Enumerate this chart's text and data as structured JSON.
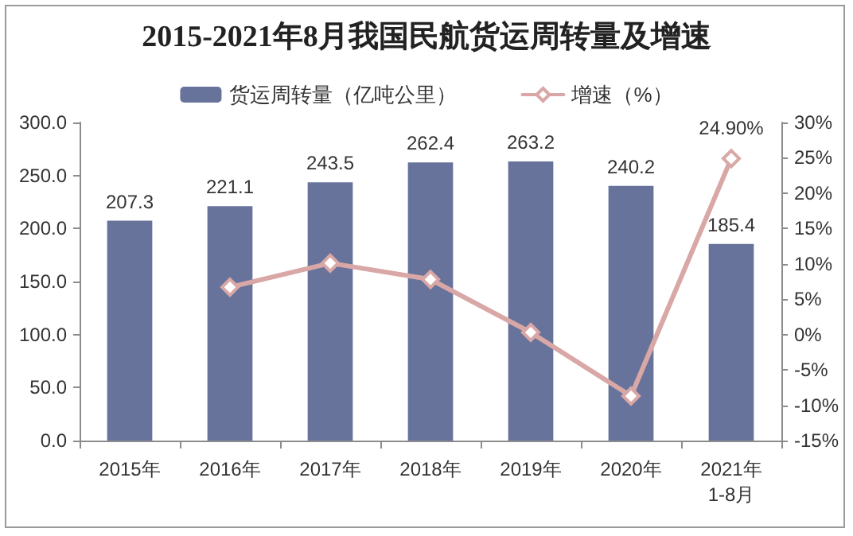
{
  "chart_data": {
    "type": "bar",
    "title": "2015-2021年8月我国民航货运周转量及增速",
    "categories": [
      "2015年",
      "2016年",
      "2017年",
      "2018年",
      "2019年",
      "2020年",
      "2021年\n1-8月"
    ],
    "series": [
      {
        "name": "货运周转量（亿吨公里）",
        "color": "#67739b",
        "values": [
          207.3,
          221.1,
          243.5,
          262.4,
          263.2,
          240.2,
          185.4
        ],
        "value_labels": [
          "207.3",
          "221.1",
          "243.5",
          "262.4",
          "263.2",
          "240.2",
          "185.4"
        ]
      },
      {
        "type": "line",
        "name": "增速（%）",
        "color": "#d8a7a6",
        "axis": "y2",
        "marker": "diamond",
        "values": [
          null,
          6.7,
          10.1,
          7.8,
          0.3,
          -8.7,
          24.9
        ],
        "value_labels": [
          null,
          null,
          null,
          null,
          null,
          null,
          "24.90%"
        ]
      }
    ],
    "ylim": [
      0,
      300
    ],
    "yticks": [
      {
        "value": 0,
        "label": "0.0"
      },
      {
        "value": 50,
        "label": "50.0"
      },
      {
        "value": 100,
        "label": "100.0"
      },
      {
        "value": 150,
        "label": "150.0"
      },
      {
        "value": 200,
        "label": "200.0"
      },
      {
        "value": 250,
        "label": "250.0"
      },
      {
        "value": 300,
        "label": "300.0"
      }
    ],
    "y2lim": [
      -15,
      30
    ],
    "y2ticks": [
      {
        "value": -15,
        "label": "-15%"
      },
      {
        "value": -10,
        "label": "-10%"
      },
      {
        "value": -5,
        "label": "-5%"
      },
      {
        "value": 0,
        "label": "0%"
      },
      {
        "value": 5,
        "label": "5%"
      },
      {
        "value": 10,
        "label": "10%"
      },
      {
        "value": 15,
        "label": "15%"
      },
      {
        "value": 20,
        "label": "20%"
      },
      {
        "value": 25,
        "label": "25%"
      },
      {
        "value": 30,
        "label": "30%"
      }
    ],
    "legend": "top",
    "grid": false
  }
}
